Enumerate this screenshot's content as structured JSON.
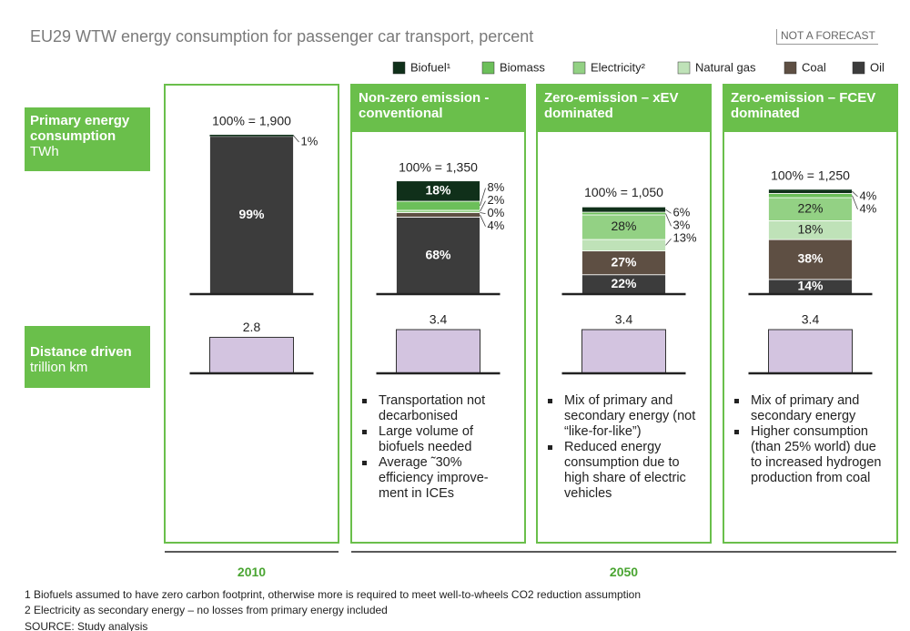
{
  "chart_data": {
    "type": "stacked_bar",
    "title": "EU29 WTW energy consumption for passenger car transport, percent",
    "badge": "NOT A FORECAST",
    "categories": [
      null,
      "Non-zero emission - conventional",
      "Zero-emission – xEV dominated",
      "Zero-emission – FCEV dominated"
    ],
    "series": [
      {
        "name": "Biofuel¹",
        "color": "#10301a",
        "values": [
          1,
          18,
          6,
          4
        ],
        "value_labels": [
          "1%",
          "18%",
          "6%",
          "4%"
        ]
      },
      {
        "name": "Biomass",
        "color": "#6cbf5a",
        "values": [
          null,
          8,
          3,
          4
        ],
        "value_labels": [
          null,
          "8%",
          "3%",
          "4%"
        ]
      },
      {
        "name": "Electricity²",
        "color": "#93d184",
        "values": [
          null,
          2,
          28,
          22
        ],
        "value_labels": [
          null,
          "2%",
          "28%",
          "22%"
        ]
      },
      {
        "name": "Natural gas",
        "color": "#bfe2b8",
        "values": [
          null,
          0,
          13,
          18
        ],
        "value_labels": [
          null,
          "0%",
          "13%",
          "18%"
        ]
      },
      {
        "name": "Coal",
        "color": "#5e4f43",
        "values": [
          null,
          4,
          27,
          38
        ],
        "value_labels": [
          null,
          "4%",
          "27%",
          "38%"
        ]
      },
      {
        "name": "Oil",
        "color": "#3c3c3c",
        "values": [
          99,
          68,
          22,
          14
        ],
        "value_labels": [
          "99%",
          "68%",
          "22%",
          "14%"
        ]
      }
    ],
    "totals": [
      {
        "value": 1900,
        "label": "100% = 1,900"
      },
      {
        "value": 1350,
        "label": "100% = 1,350"
      },
      {
        "value": 1050,
        "label": "100% = 1,050"
      },
      {
        "value": 1250,
        "label": "100% = 1,250"
      }
    ],
    "distance": {
      "color": "#d3c4e0",
      "values": [
        2.8,
        3.4,
        3.4,
        3.4
      ]
    },
    "row_labels": [
      {
        "title": "Primary energy consumption",
        "unit": "TWh"
      },
      {
        "title": "Distance driven",
        "unit": "trillion km"
      }
    ],
    "notes": [
      [],
      [
        "Transportation not decarbonised",
        "Large volume of biofuels needed",
        "Average ˜30% efficiency improve-ment in ICEs"
      ],
      [
        "Mix of primary and secondary energy (not “like-for-like”)",
        "Reduced energy consumption due to high share of electric vehicles"
      ],
      [
        "Mix of primary and secondary energy",
        "Higher consumption (than 25% world) due to increased hydrogen production from coal"
      ]
    ],
    "periods": [
      "2010",
      "2050"
    ],
    "footnotes": [
      "1 Biofuels assumed to have zero carbon footprint, otherwise more is required to meet well-to-wheels CO2 reduction assumption",
      "2 Electricity as secondary energy – no losses from primary energy included"
    ],
    "source": "SOURCE: Study analysis"
  }
}
